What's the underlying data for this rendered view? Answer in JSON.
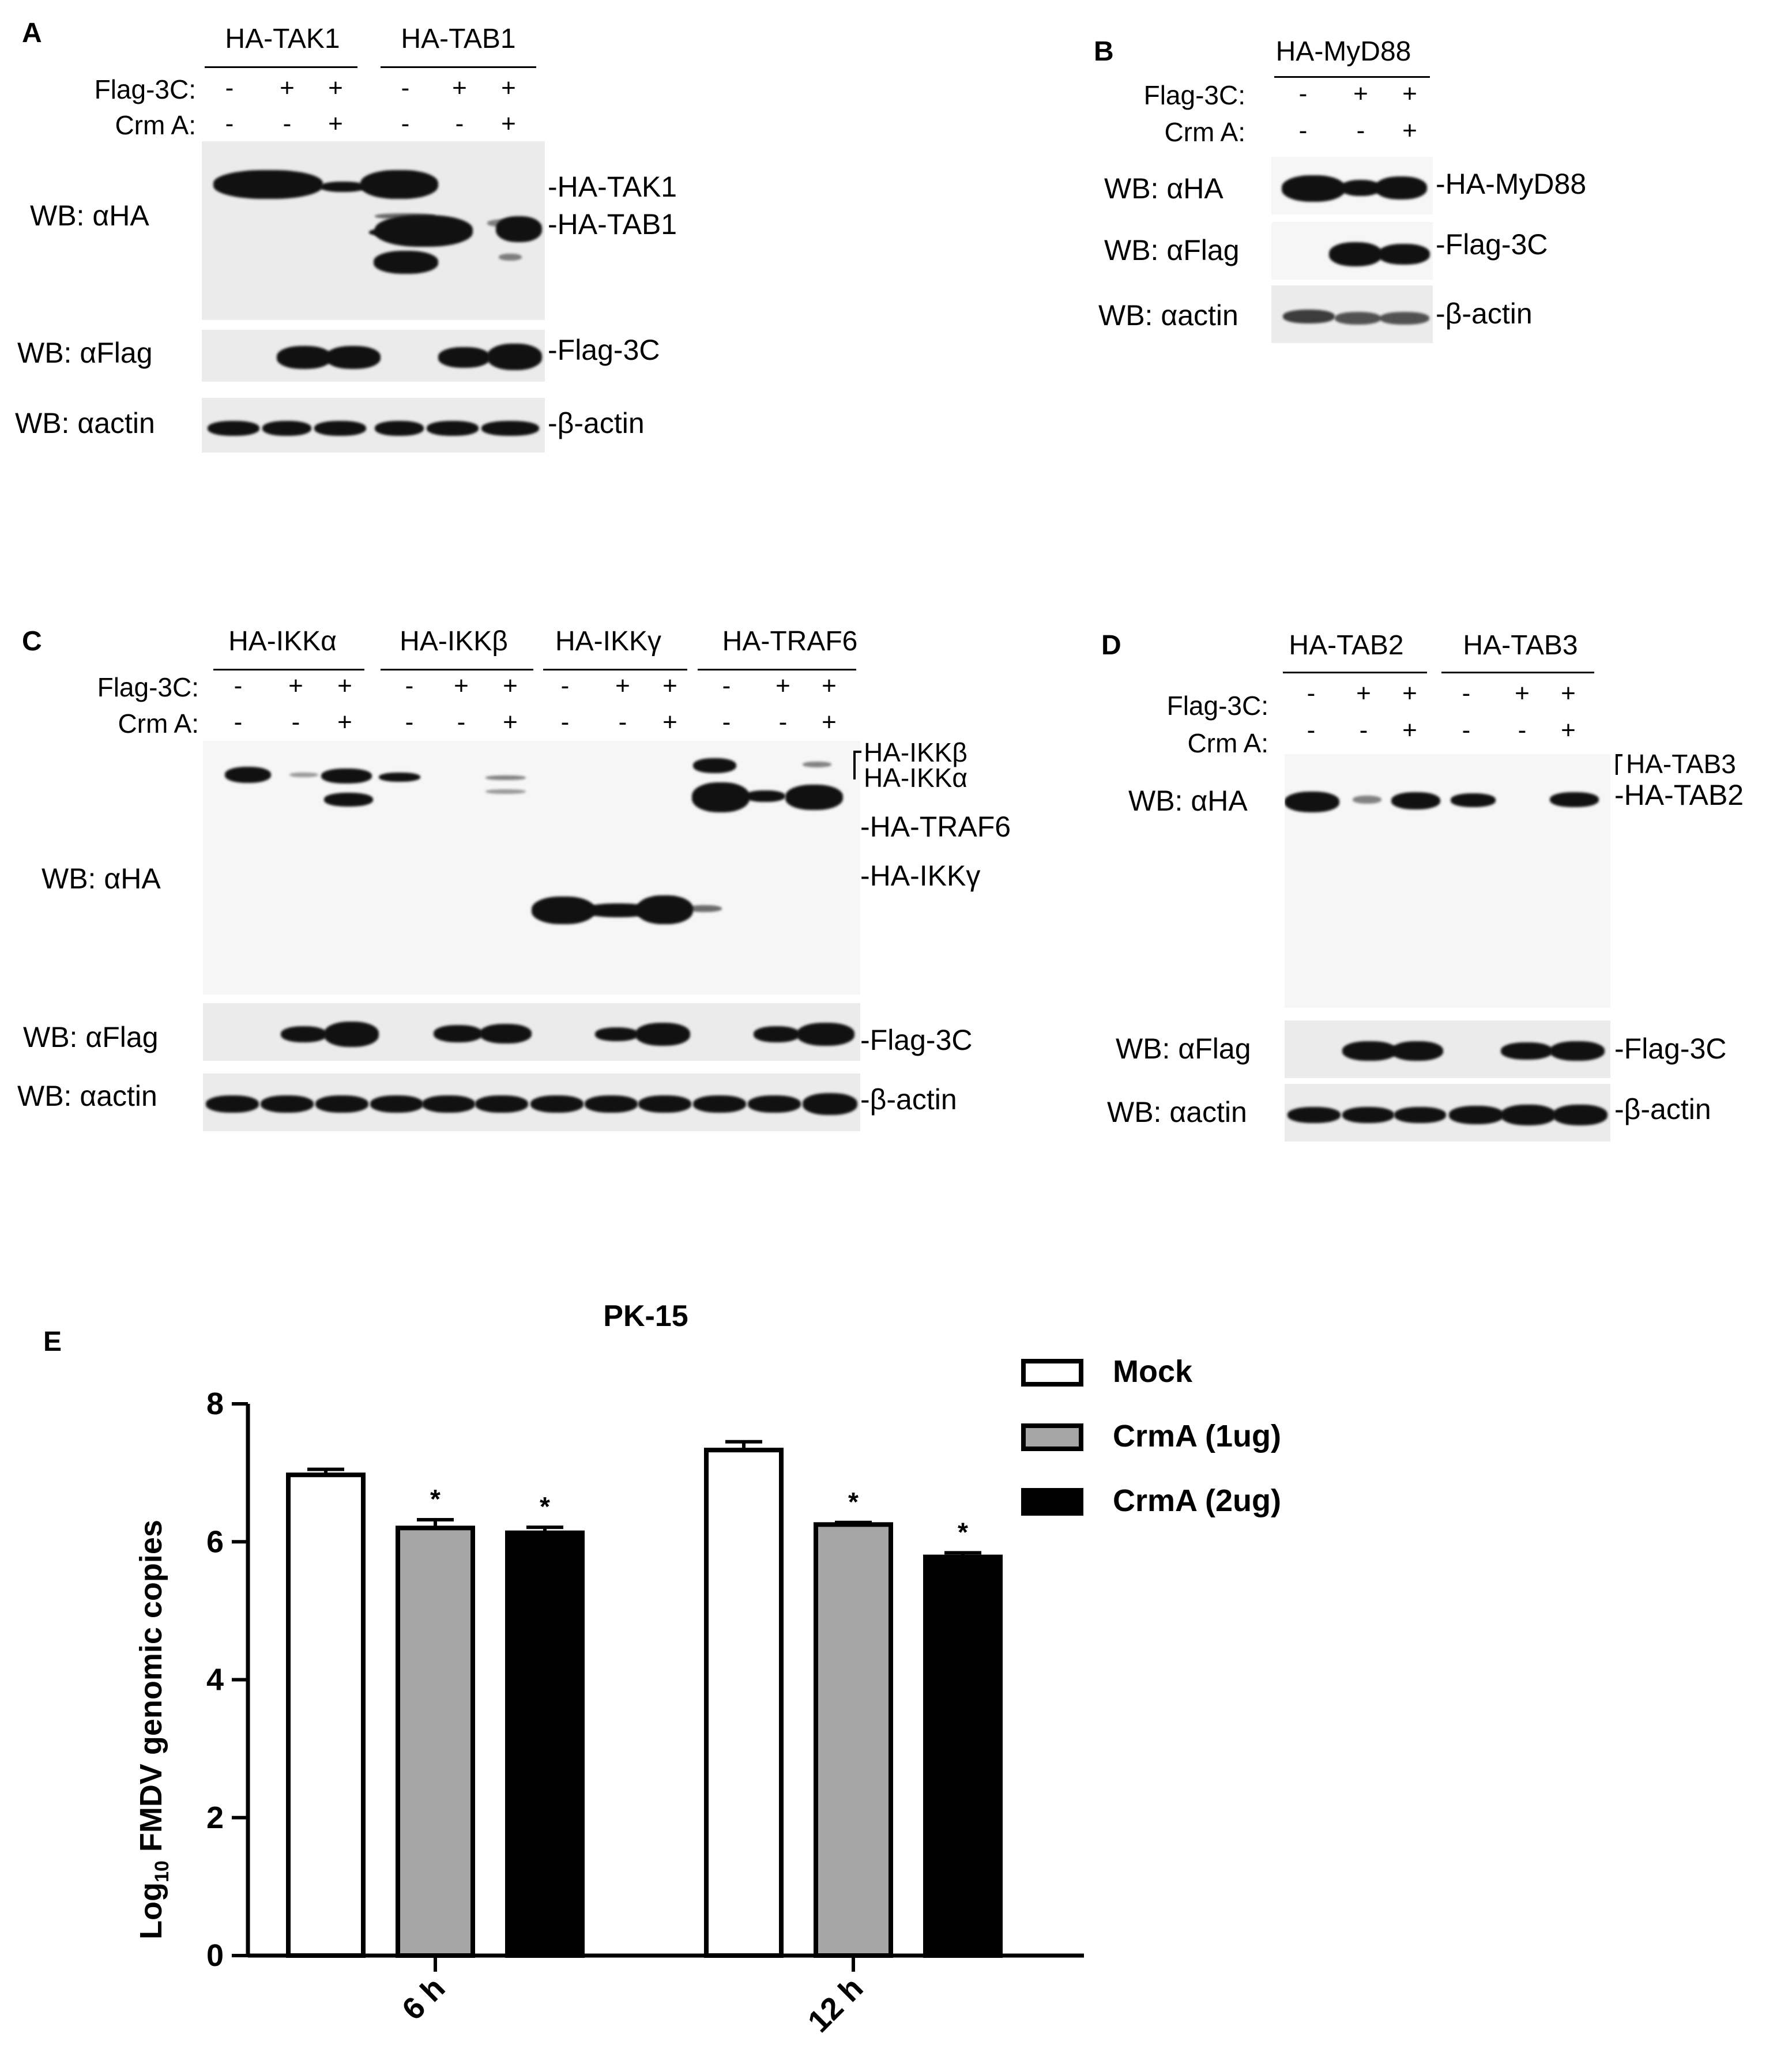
{
  "panelA": {
    "label": "A",
    "groups": [
      "HA-TAK1",
      "HA-TAB1"
    ],
    "flag_label": "Flag-3C:",
    "crm_label": "Crm A:",
    "flag_signs": [
      "-",
      "+",
      "+",
      "-",
      "+",
      "+"
    ],
    "crm_signs": [
      "-",
      "-",
      "+",
      "-",
      "-",
      "+"
    ],
    "wb_ha": "WB: αHA",
    "wb_flag": "WB: αFlag",
    "wb_actin": "WB: αactin",
    "markers": [
      "-HA-TAK1",
      "-HA-TAB1",
      "-Flag-3C",
      "-β-actin"
    ]
  },
  "panelB": {
    "label": "B",
    "groups": [
      "HA-MyD88"
    ],
    "flag_label": "Flag-3C:",
    "crm_label": "Crm A:",
    "flag_signs": [
      "-",
      "+",
      "+"
    ],
    "crm_signs": [
      "-",
      "-",
      "+"
    ],
    "wb_ha": "WB: αHA",
    "wb_flag": "WB: αFlag",
    "wb_actin": "WB: αactin",
    "markers": [
      "-HA-MyD88",
      "-Flag-3C",
      "-β-actin"
    ]
  },
  "panelC": {
    "label": "C",
    "groups": [
      "HA-IKKα",
      "HA-IKKβ",
      "HA-IKKγ",
      "HA-TRAF6"
    ],
    "flag_label": "Flag-3C:",
    "crm_label": "Crm A:",
    "flag_signs": [
      "-",
      "+",
      "+",
      "-",
      "+",
      "+",
      "-",
      "+",
      "+",
      "-",
      "+",
      "+"
    ],
    "crm_signs": [
      "-",
      "-",
      "+",
      "-",
      "-",
      "+",
      "-",
      "-",
      "+",
      "-",
      "-",
      "+"
    ],
    "wb_ha": "WB: αHA",
    "wb_flag": "WB: αFlag",
    "wb_actin": "WB: αactin",
    "markers": [
      "HA-IKKβ",
      "HA-IKKα",
      "-HA-TRAF6",
      "-HA-IKKγ",
      "-Flag-3C",
      "-β-actin"
    ]
  },
  "panelD": {
    "label": "D",
    "groups": [
      "HA-TAB2",
      "HA-TAB3"
    ],
    "flag_label": "Flag-3C:",
    "crm_label": "Crm A:",
    "flag_signs": [
      "-",
      "+",
      "+",
      "-",
      "+",
      "+"
    ],
    "crm_signs": [
      "-",
      "-",
      "+",
      "-",
      "-",
      "+"
    ],
    "wb_ha": "WB: αHA",
    "wb_flag": "WB: αFlag",
    "wb_actin": "WB: αactin",
    "markers": [
      "HA-TAB3",
      "-HA-TAB2",
      "-Flag-3C",
      "-β-actin"
    ]
  },
  "panelE": {
    "label": "E",
    "chart_data": {
      "type": "bar",
      "title": "PK-15",
      "ylabel": "Log10 FMDV genomic copies",
      "ylabel_main": "Log",
      "ylabel_sub": "10",
      "ylabel_rest": " FMDV genomic copies",
      "ylim": [
        0,
        8
      ],
      "yticks": [
        "0",
        "2",
        "4",
        "6",
        "8"
      ],
      "categories": [
        "6 h",
        "12 h"
      ],
      "series": [
        {
          "name": "Mock",
          "values": [
            6.97,
            7.33
          ],
          "errors": [
            0.08,
            0.12
          ],
          "color": "#ffffff",
          "sig": [
            "",
            ""
          ]
        },
        {
          "name": "CrmA (1ug)",
          "values": [
            6.2,
            6.25
          ],
          "errors": [
            0.12,
            0.03
          ],
          "color": "#a6a6a6",
          "sig": [
            "*",
            "*"
          ]
        },
        {
          "name": "CrmA (2ug)",
          "values": [
            6.13,
            5.78
          ],
          "errors": [
            0.08,
            0.06
          ],
          "color": "#000000",
          "sig": [
            "*",
            "*"
          ]
        }
      ],
      "legend_position": "top-right"
    }
  }
}
